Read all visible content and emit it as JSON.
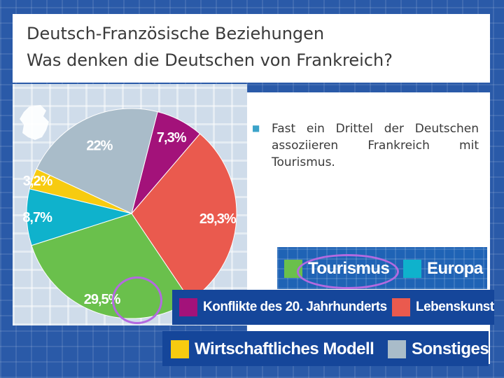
{
  "slide": {
    "title_line1": "Deutsch-Französische Beziehungen",
    "title_line2": "Was denken die Deutschen von Frankreich?",
    "bullet_text": "Fast ein Drittel der Deutschen assoziieren Frankreich mit Tourismus."
  },
  "chart_data": {
    "type": "pie",
    "title": "",
    "slices": [
      {
        "name": "Konflikte des 20. Jahrhunderts",
        "value": 7.3,
        "label": "7,3%",
        "color": "#a3127a"
      },
      {
        "name": "Lebenskunst",
        "value": 29.3,
        "label": "29,3%",
        "color": "#ea5a4e"
      },
      {
        "name": "Tourismus",
        "value": 29.5,
        "label": "29,5%",
        "color": "#6ac04c"
      },
      {
        "name": "Europa",
        "value": 8.7,
        "label": "8,7%",
        "color": "#0fb2cc"
      },
      {
        "name": "Wirtschaftliches Modell",
        "value": 3.2,
        "label": "3,2%",
        "color": "#f7cb10"
      },
      {
        "name": "Sonstiges",
        "value": 22,
        "label": "22%",
        "color": "#a9bcc9"
      }
    ],
    "legend": [
      {
        "label": "Tourismus",
        "color": "#6ac04c"
      },
      {
        "label": "Europa",
        "color": "#0fb2cc"
      },
      {
        "label": "Konflikte des 20. Jahrhunderts",
        "color": "#a3127a"
      },
      {
        "label": "Lebenskunst",
        "color": "#ea5a4e"
      },
      {
        "label": "Wirtschaftliches Modell",
        "color": "#f7cb10"
      },
      {
        "label": "Sonstiges",
        "color": "#a9bcc9"
      }
    ],
    "legend_placement": "bottom-right",
    "highlighted": "Tourismus"
  },
  "colors": {
    "background_blue": "#2a5aa8",
    "highlight_purple": "#b36ae0",
    "bullet_accent": "#3ba3c9"
  },
  "icons": {
    "germany_map": "germany-map-icon"
  }
}
